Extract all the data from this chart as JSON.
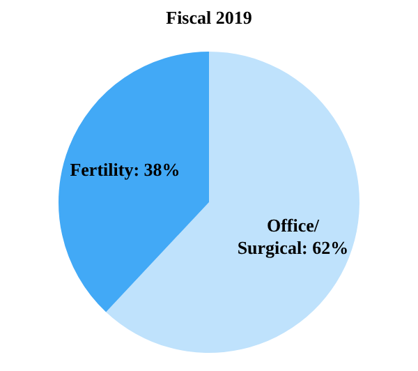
{
  "chart_data": {
    "type": "pie",
    "title": "Fiscal 2019",
    "categories": [
      "Office/ Surgical",
      "Fertility"
    ],
    "values": [
      62,
      38
    ],
    "value_labels": [
      "62%",
      "38%"
    ],
    "colors": [
      "#bfe2fc",
      "#42a9f6"
    ]
  }
}
